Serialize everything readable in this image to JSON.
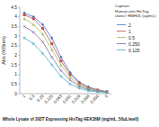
{
  "chart_data": {
    "type": "line",
    "y_label": "Abs (405nm)",
    "x_label": "Whole Lysate of 293T Expressing HisTag HEK36M (mg/mL, 50uL/well)",
    "legend_title": [
      "Capture:",
      "Human anti-HisTag",
      "clone# RMH01 (ug/mL)"
    ],
    "categories": [
      "1",
      "0.5",
      "0.25",
      "0.125",
      "0.063",
      "0.031",
      "0.016",
      "0.008",
      "0.004",
      "0"
    ],
    "series": [
      {
        "name": "2",
        "color": "#4472c4",
        "marker": "diamond",
        "values": [
          4.2,
          4.0,
          3.6,
          2.9,
          1.9,
          1.1,
          0.6,
          0.35,
          0.2,
          0.1
        ]
      },
      {
        "name": "1",
        "color": "#c0504d",
        "marker": "square",
        "values": [
          4.1,
          3.9,
          3.4,
          2.6,
          1.7,
          1.0,
          0.55,
          0.3,
          0.18,
          0.1
        ]
      },
      {
        "name": "0.5",
        "color": "#9bbb59",
        "marker": "triangle",
        "values": [
          3.9,
          3.6,
          3.1,
          2.3,
          1.5,
          0.85,
          0.45,
          0.25,
          0.15,
          0.08
        ]
      },
      {
        "name": "0.250",
        "color": "#8064a2",
        "marker": "x",
        "values": [
          3.5,
          3.2,
          2.7,
          1.9,
          1.2,
          0.7,
          0.38,
          0.2,
          0.12,
          0.07
        ]
      },
      {
        "name": "0.125",
        "color": "#4bacc6",
        "marker": "star",
        "values": [
          2.9,
          2.6,
          2.1,
          1.5,
          0.9,
          0.5,
          0.28,
          0.15,
          0.1,
          0.06
        ]
      }
    ],
    "ylim": [
      0,
      4.5
    ],
    "yticks": [
      0,
      0.5,
      1,
      1.5,
      2,
      2.5,
      3,
      3.5,
      4,
      4.5
    ],
    "grid": false,
    "legend": "right"
  }
}
